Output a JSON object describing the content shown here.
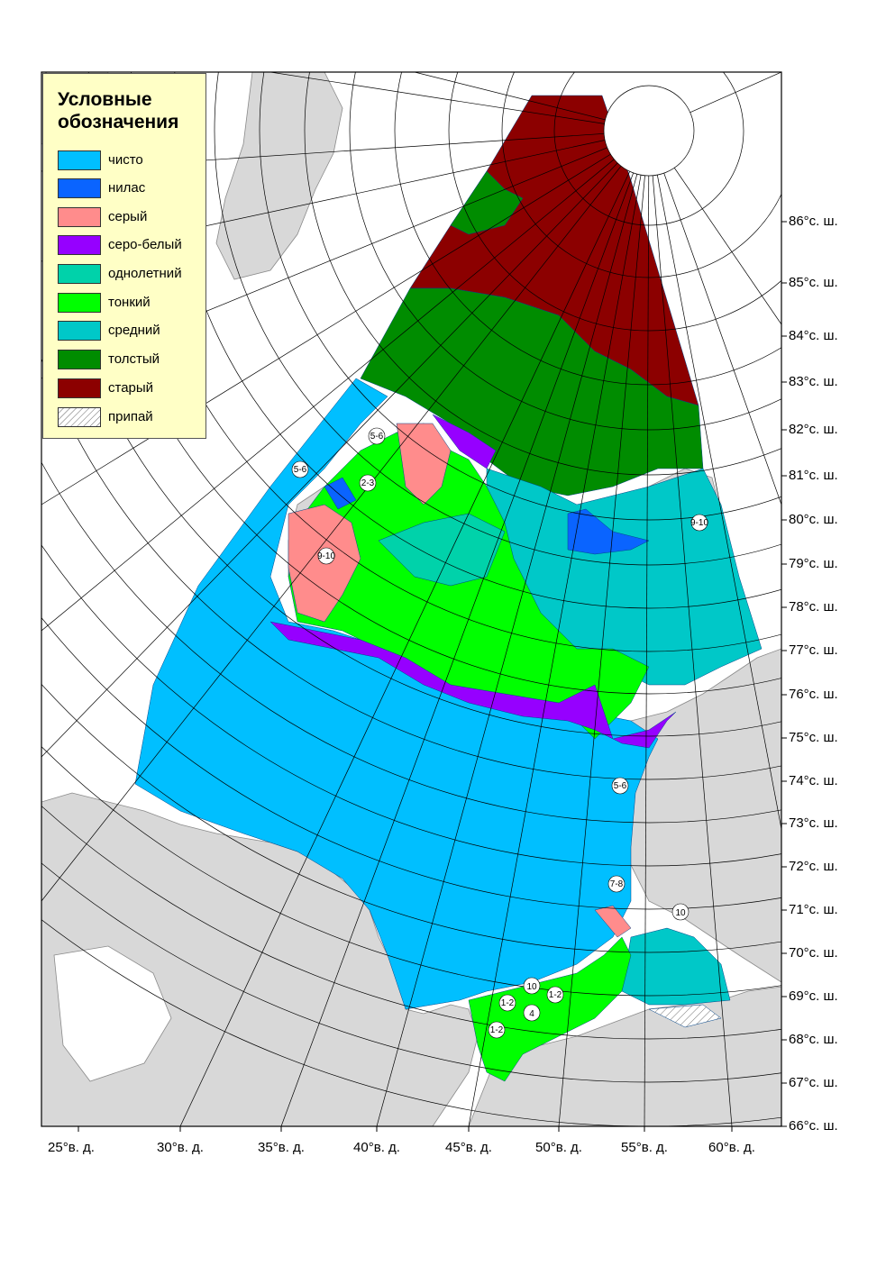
{
  "legend": {
    "title_line1": "Условные",
    "title_line2": "обозначения",
    "items": [
      {
        "label": "чисто",
        "color": "#00bfff"
      },
      {
        "label": "нилас",
        "color": "#0a64ff"
      },
      {
        "label": "серый",
        "color": "#ff8c8c"
      },
      {
        "label": "серо-белый",
        "color": "#9600ff"
      },
      {
        "label": "однолетний",
        "color": "#00d2aa"
      },
      {
        "label": "тонкий",
        "color": "#00ff00"
      },
      {
        "label": "средний",
        "color": "#00c8c8"
      },
      {
        "label": "толстый",
        "color": "#008c00"
      },
      {
        "label": "старый",
        "color": "#8c0000"
      },
      {
        "label": "припай",
        "color": "#ffffff"
      }
    ]
  },
  "latitude_labels": [
    "86°с. ш.",
    "85°с. ш.",
    "84°с. ш.",
    "83°с. ш.",
    "82°с. ш.",
    "81°с. ш.",
    "80°с. ш.",
    "79°с. ш.",
    "78°с. ш.",
    "77°с. ш.",
    "76°с. ш.",
    "75°с. ш.",
    "74°с. ш.",
    "73°с. ш.",
    "72°с. ш.",
    "71°с. ш.",
    "70°с. ш.",
    "69°с. ш.",
    "68°с. ш.",
    "67°с. ш.",
    "66°с. ш."
  ],
  "longitude_labels": [
    "25°в. д.",
    "30°в. д.",
    "35°в. д.",
    "40°в. д.",
    "45°в. д.",
    "50°в. д.",
    "55°в. д.",
    "60°в. д."
  ],
  "concentration_labels": [
    "5-6",
    "5-6",
    "2-3",
    "9-10",
    "9-10",
    "5-6",
    "7-8",
    "10",
    "10",
    "1-2",
    "1-2",
    "4",
    "1-2"
  ],
  "colors": {
    "land": "#d8d8d8",
    "land_border": "#8a8a8a",
    "grid": "#000000",
    "frame": "#000000"
  }
}
